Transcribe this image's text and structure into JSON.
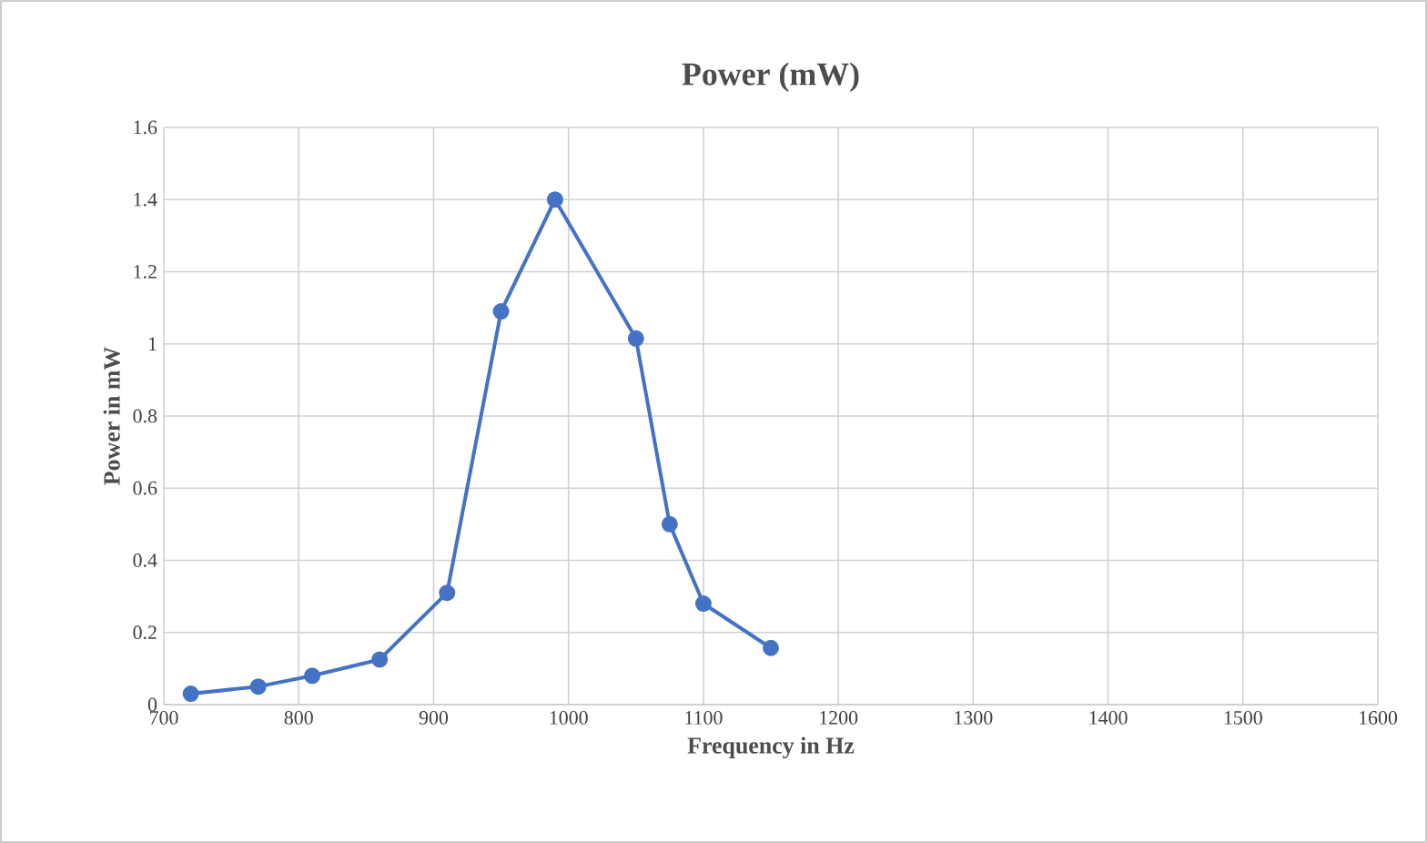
{
  "chart_data": {
    "type": "line",
    "title": "Power (mW)",
    "xlabel": "Frequency in Hz",
    "ylabel": "Power in mW",
    "x": [
      720,
      770,
      810,
      860,
      910,
      950,
      990,
      1050,
      1075,
      1100,
      1150
    ],
    "series": [
      {
        "color": "#4472c4",
        "values": [
          0.03,
          0.05,
          0.08,
          0.125,
          0.31,
          1.09,
          1.4,
          1.015,
          0.5,
          0.28,
          0.157
        ]
      }
    ],
    "xlim": [
      700,
      1600
    ],
    "ylim": [
      0,
      1.6
    ],
    "xticks": [
      700,
      800,
      900,
      1000,
      1100,
      1200,
      1300,
      1400,
      1500,
      1600
    ],
    "yticks": [
      0,
      {
        "value": 0.2,
        "label": "0.2"
      },
      {
        "value": 0.4,
        "label": "0.4"
      },
      {
        "value": 0.6,
        "label": "0.6"
      },
      {
        "value": 0.8,
        "label": "0.8"
      },
      1,
      {
        "value": 1.2,
        "label": "1.2"
      },
      {
        "value": 1.4,
        "label": "1.4"
      },
      {
        "value": 1.6,
        "label": "1.6"
      }
    ],
    "grid": true,
    "marker": "circle",
    "line_style": "solid"
  }
}
